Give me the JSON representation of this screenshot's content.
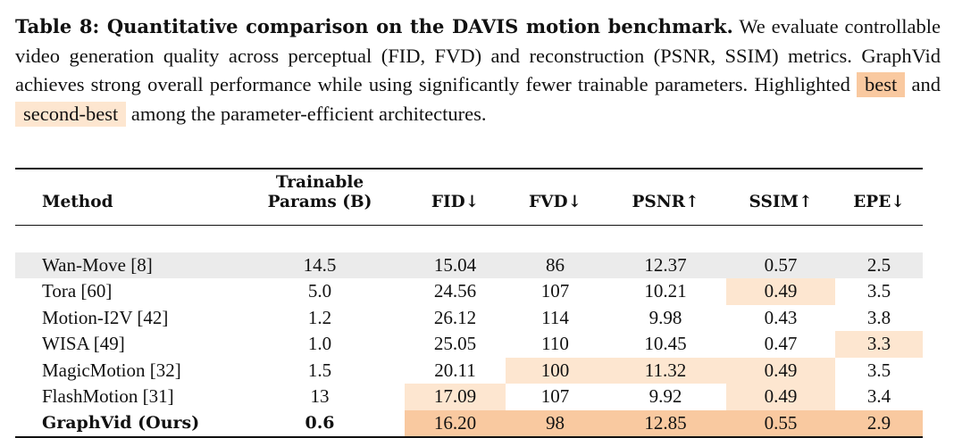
{
  "caption": {
    "title": "Table 8: Quantitative comparison on the DAVIS motion benchmark.",
    "body_before": " We evaluate controllable video generation quality across perceptual (FID, FVD) and reconstruction (PSNR, SSIM) metrics. GraphVid achieves strong overall performance while using significantly fewer trainable parameters. Highlighted ",
    "best_label": "best",
    "and_word": " and ",
    "second_label": "second-best",
    "body_after": " among the parameter-efficient architectures."
  },
  "colors": {
    "best": "#f9c9a0",
    "second_best": "#fde6d0",
    "reference_row": "#ebebeb"
  },
  "table": {
    "headers": {
      "method": "Method",
      "params_line1": "Trainable",
      "params_line2": "Params (B)",
      "fid": "FID↓",
      "fvd": "FVD↓",
      "psnr": "PSNR↑",
      "ssim": "SSIM↑",
      "epe": "EPE↓"
    },
    "rows": [
      {
        "method": "Wan-Move [8]",
        "params": "14.5",
        "fid": "15.04",
        "fvd": "86",
        "psnr": "12.37",
        "ssim": "0.57",
        "epe": "2.5"
      },
      {
        "method": "Tora [60]",
        "params": "5.0",
        "fid": "24.56",
        "fvd": "107",
        "psnr": "10.21",
        "ssim": "0.49",
        "epe": "3.5"
      },
      {
        "method": "Motion-I2V [42]",
        "params": "1.2",
        "fid": "26.12",
        "fvd": "114",
        "psnr": "9.98",
        "ssim": "0.43",
        "epe": "3.8"
      },
      {
        "method": "WISA [49]",
        "params": "1.0",
        "fid": "25.05",
        "fvd": "110",
        "psnr": "10.45",
        "ssim": "0.47",
        "epe": "3.3"
      },
      {
        "method": "MagicMotion [32]",
        "params": "1.5",
        "fid": "20.11",
        "fvd": "100",
        "psnr": "11.32",
        "ssim": "0.49",
        "epe": "3.5"
      },
      {
        "method": "FlashMotion [31]",
        "params": "13",
        "fid": "17.09",
        "fvd": "107",
        "psnr": "9.92",
        "ssim": "0.49",
        "epe": "3.4"
      },
      {
        "method": "GraphVid (Ours)",
        "params": "0.6",
        "fid": "16.20",
        "fvd": "98",
        "psnr": "12.85",
        "ssim": "0.55",
        "epe": "2.9"
      }
    ]
  }
}
